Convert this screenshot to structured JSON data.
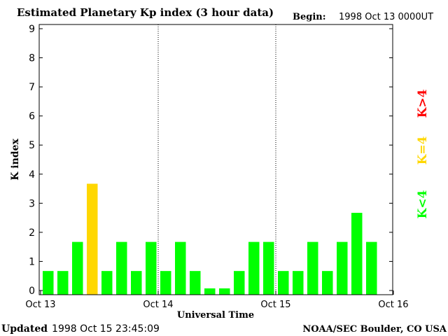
{
  "chart_data": {
    "type": "bar",
    "title": "Estimated Planetary Kp index (3 hour data)",
    "begin_label": "Begin:",
    "begin_value": "1998 Oct 13 0000UT",
    "ylabel": "K index",
    "xlabel": "Universal Time",
    "ylim": [
      0,
      9
    ],
    "yticks": [
      "0",
      "1",
      "2",
      "3",
      "4",
      "5",
      "6",
      "7",
      "8",
      "9"
    ],
    "xticks": [
      "Oct 13",
      "Oct 14",
      "Oct 15",
      "Oct 16"
    ],
    "grid": "dotted day separators",
    "values": [
      0.67,
      0.67,
      1.67,
      3.67,
      0.67,
      1.67,
      0.67,
      1.67,
      0.67,
      1.67,
      0.67,
      0.0,
      0.0,
      0.67,
      1.67,
      1.67,
      0.67,
      0.67,
      1.67,
      0.67,
      1.67,
      2.67,
      1.67
    ],
    "legend": [
      {
        "label": "K<4",
        "color": "#00ff00"
      },
      {
        "label": "K=4",
        "color": "#ffd700"
      },
      {
        "label": "K>4",
        "color": "#ff0000"
      }
    ]
  },
  "footer": {
    "updated_label": "Updated",
    "updated_value": "1998 Oct 15 23:45:09",
    "source": "NOAA/SEC Boulder, CO USA"
  }
}
